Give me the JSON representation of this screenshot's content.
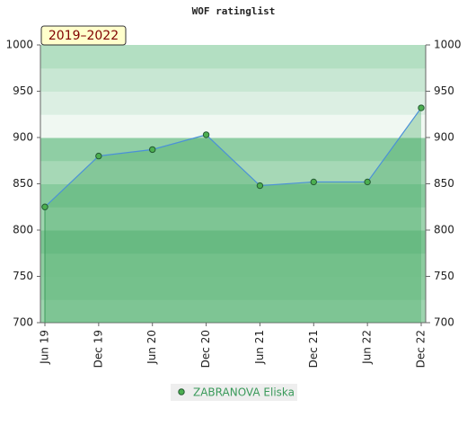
{
  "chart_data": {
    "type": "line",
    "title": "WOF ratinglist",
    "annotation": "2019–2022",
    "categories": [
      "Jun 19",
      "Dec 19",
      "Jun 20",
      "Dec 20",
      "Jun 21",
      "Dec 21",
      "Jun 22",
      "Dec 22"
    ],
    "series": [
      {
        "name": "ZABRANOVA Eliska",
        "color": "#4a90d9",
        "marker_color": "#4caf50",
        "values": [
          825,
          880,
          887,
          903,
          848,
          852,
          852,
          932
        ]
      }
    ],
    "ylim": [
      700,
      1000
    ],
    "yticks": [
      700,
      750,
      800,
      850,
      900,
      950,
      1000
    ],
    "y2lim": [
      700,
      1000
    ],
    "y2ticks": [
      700,
      750,
      800,
      850,
      900,
      950,
      1000
    ],
    "fill": true,
    "legend": "bottom"
  }
}
